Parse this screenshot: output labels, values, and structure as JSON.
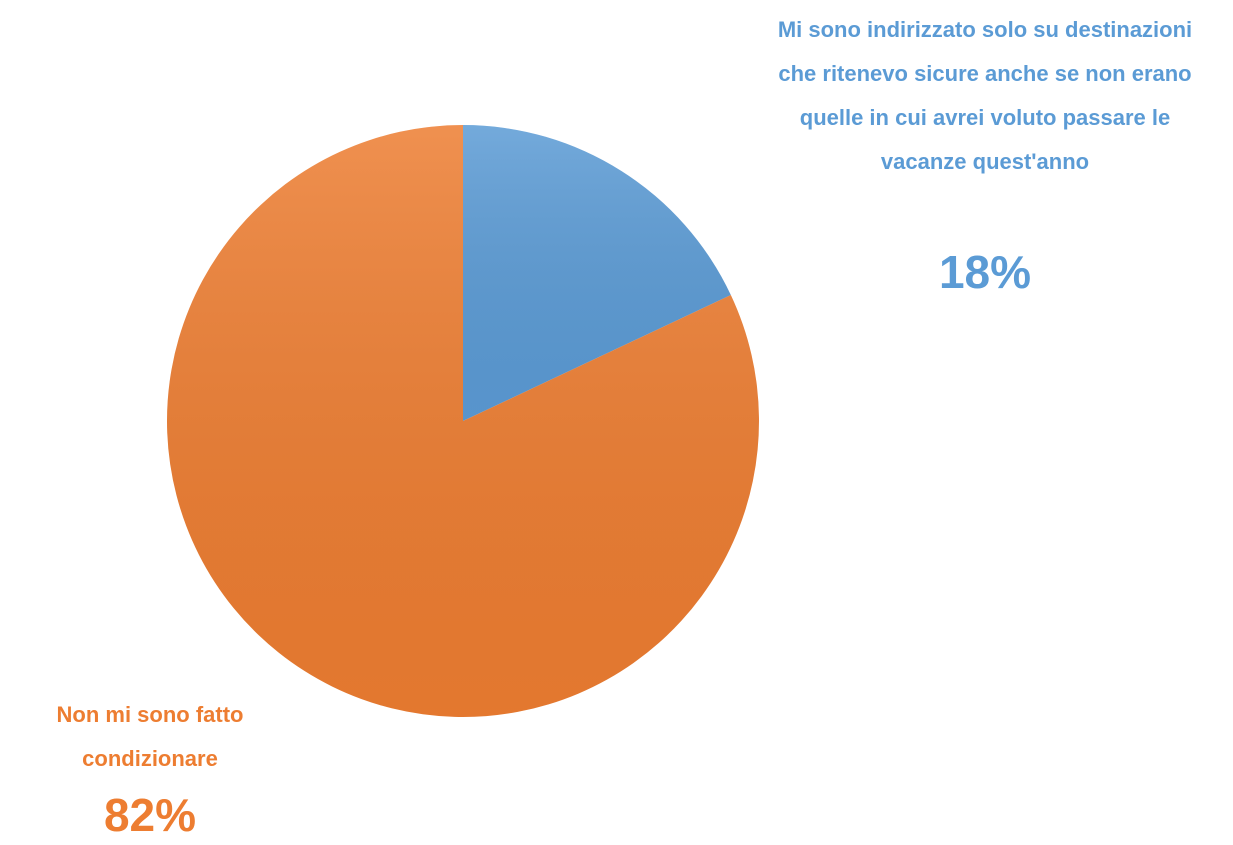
{
  "chart_data": {
    "type": "pie",
    "categories": [
      "Mi sono indirizzato solo su destinazioni che ritenevo sicure anche se non erano quelle in cui avrei voluto passare le vacanze quest'anno",
      "Non mi sono fatto condizionare"
    ],
    "values": [
      18,
      82
    ],
    "value_labels": [
      "18%",
      "82%"
    ],
    "colors": [
      "#5b9bd5",
      "#ed7d31"
    ]
  }
}
